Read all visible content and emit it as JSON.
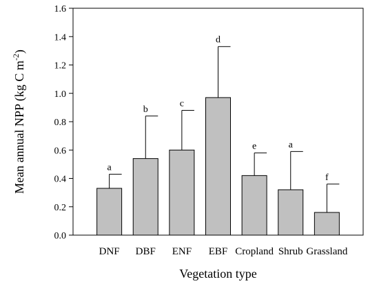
{
  "chart_data": {
    "type": "bar",
    "xlabel": "Vegetation type",
    "ylabel": "Mean annual NPP (kg C m",
    "ylabel_superscript": "-2",
    "ylabel_suffix": ")",
    "ylim": [
      0.0,
      1.6
    ],
    "yticks": [
      "0.0",
      "0.2",
      "0.4",
      "0.6",
      "0.8",
      "1.0",
      "1.2",
      "1.4",
      "1.6"
    ],
    "categories": [
      "DNF",
      "DBF",
      "ENF",
      "EBF",
      "Cropland",
      "Shrub",
      "Grassland"
    ],
    "values": [
      0.33,
      0.54,
      0.6,
      0.97,
      0.42,
      0.32,
      0.16
    ],
    "error_upper": [
      0.43,
      0.84,
      0.88,
      1.33,
      0.58,
      0.59,
      0.36
    ],
    "significance_letters": [
      "a",
      "b",
      "c",
      "d",
      "e",
      "a",
      "f"
    ],
    "bar_color": "#c0c0c0",
    "grid": false,
    "legend": "none"
  }
}
